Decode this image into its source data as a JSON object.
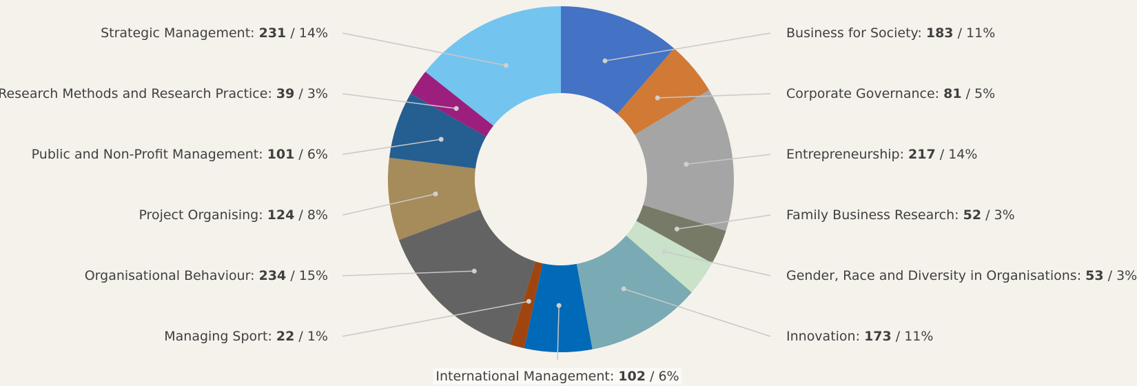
{
  "chart_data": {
    "type": "donut",
    "categories": [
      "Business for Society",
      "Corporate Governance",
      "Entrepreneurship",
      "Family Business Research",
      "Gender, Race and Diversity in Organisations",
      "Innovation",
      "International Management",
      "Managing Sport",
      "Organisational Behaviour",
      "Project Organising",
      "Public and Non-Profit Management",
      "Research Methods and Research Practice",
      "Strategic Management"
    ],
    "values": [
      183,
      81,
      217,
      52,
      53,
      173,
      102,
      22,
      234,
      124,
      101,
      39,
      231
    ],
    "percent_labels": [
      "11%",
      "5%",
      "14%",
      "3%",
      "3%",
      "11%",
      "6%",
      "1%",
      "15%",
      "8%",
      "6%",
      "3%",
      "14%"
    ],
    "colors": [
      "#4472c4",
      "#d07a36",
      "#a5a5a5",
      "#767a66",
      "#c9e2c9",
      "#7aaab3",
      "#0069b8",
      "#a0450f",
      "#636363",
      "#a68b5b",
      "#255e91",
      "#9c1f7e",
      "#74c4f0"
    ]
  }
}
